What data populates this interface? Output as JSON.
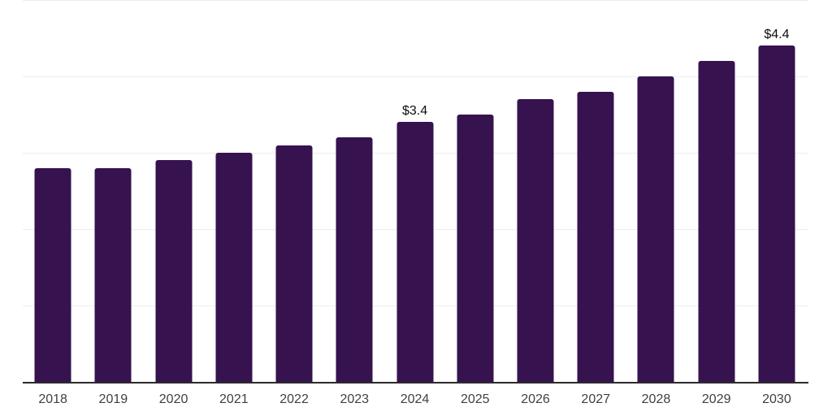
{
  "chart_data": {
    "type": "bar",
    "title": "",
    "categories": [
      "2018",
      "2019",
      "2020",
      "2021",
      "2022",
      "2023",
      "2024",
      "2025",
      "2026",
      "2027",
      "2028",
      "2029",
      "2030"
    ],
    "values": [
      2.8,
      2.8,
      2.9,
      3.0,
      3.1,
      3.2,
      3.4,
      3.5,
      3.7,
      3.8,
      4.0,
      4.2,
      4.4
    ],
    "value_labels": {
      "2024": "$3.4",
      "2030": "$4.4"
    },
    "xlabel": "",
    "ylabel": "",
    "ylim": [
      0,
      5
    ],
    "gridlines": [
      1,
      2,
      3,
      4,
      5
    ],
    "grid": "horizontal",
    "legend": "none",
    "y_axis_labels_visible": false,
    "colors": {
      "bar": "#36124f",
      "gridline": "#ededed",
      "axis_line": "#2b2b2b",
      "tick_label": "#404040",
      "value_label": "#0d0d0d",
      "background": "#ffffff"
    }
  }
}
